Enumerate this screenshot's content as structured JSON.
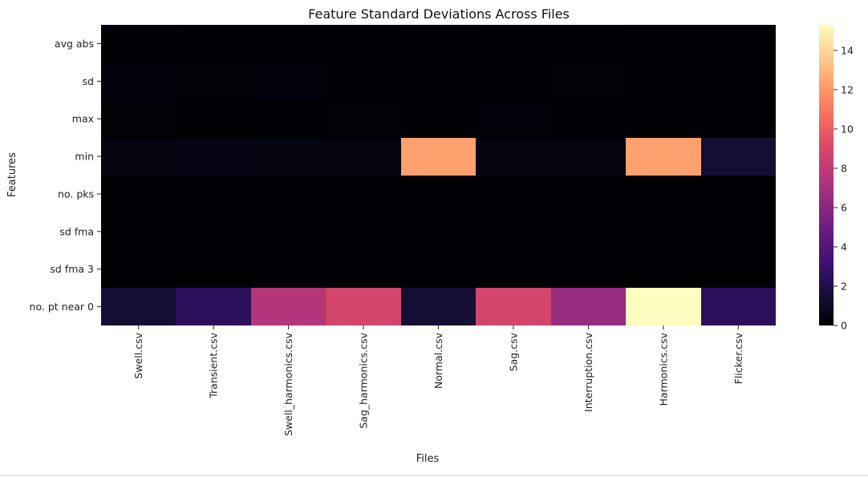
{
  "chart_data": {
    "type": "heatmap",
    "title": "Feature Standard Deviations Across Files",
    "xlabel": "Files",
    "ylabel": "Features",
    "columns": [
      "Swell.csv",
      "Transient.csv",
      "Swell_harmonics.csv",
      "Sag_harmonics.csv",
      "Normal.csv",
      "Sag.csv",
      "Interruption.csv",
      "Harmonics.csv",
      "Flicker.csv"
    ],
    "rows": [
      "avg abs",
      "sd",
      "max",
      "min",
      "no. pks",
      "sd fma",
      "sd fma 3",
      "no. pt near 0"
    ],
    "values": [
      [
        0.05,
        0.03,
        0.04,
        0.03,
        0.01,
        0.02,
        0.04,
        0.01,
        0.01
      ],
      [
        0.2,
        0.06,
        0.15,
        0.05,
        0.01,
        0.04,
        0.09,
        0.01,
        0.01
      ],
      [
        0.06,
        0.03,
        0.04,
        0.08,
        0.01,
        0.16,
        0.04,
        0.01,
        0.01
      ],
      [
        0.35,
        0.45,
        0.4,
        0.3,
        12.3,
        0.35,
        0.3,
        12.3,
        1.5
      ],
      [
        0.0,
        0.0,
        0.0,
        0.0,
        0.0,
        0.0,
        0.0,
        0.0,
        0.0
      ],
      [
        0.0,
        0.0,
        0.0,
        0.0,
        0.0,
        0.0,
        0.0,
        0.0,
        0.0
      ],
      [
        0.0,
        0.0,
        0.0,
        0.0,
        0.0,
        0.0,
        0.0,
        0.0,
        0.0
      ],
      [
        1.5,
        2.5,
        7.5,
        8.8,
        1.5,
        8.8,
        6.5,
        15.3,
        2.5
      ]
    ],
    "colormap": "magma",
    "vmin": 0,
    "vmax": 15.3,
    "colorbar_ticks": [
      0,
      2,
      4,
      6,
      8,
      10,
      12,
      14
    ],
    "grid": false,
    "colorbar_position": "right"
  }
}
